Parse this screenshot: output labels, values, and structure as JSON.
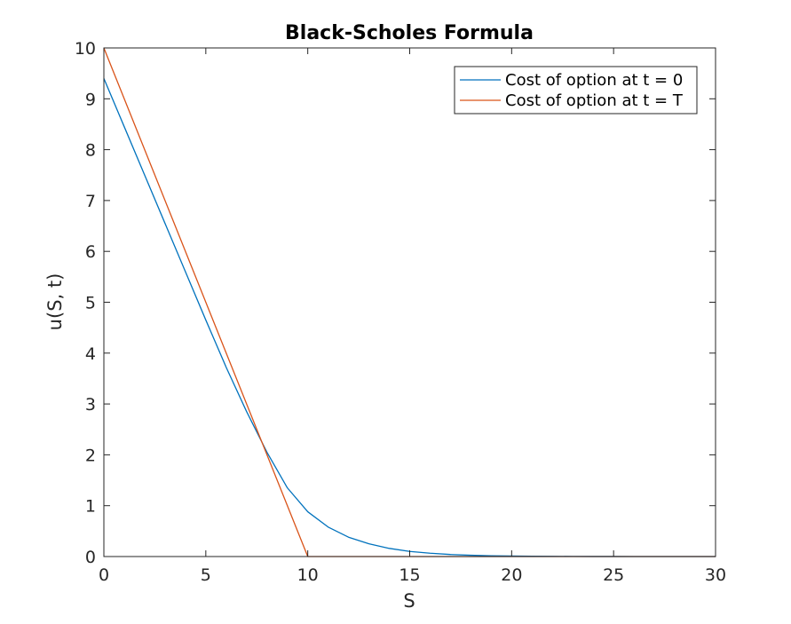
{
  "chart_data": {
    "type": "line",
    "title": "Black-Scholes Formula",
    "xlabel": "S",
    "ylabel": "u(S, t)",
    "xlim": [
      0,
      30
    ],
    "ylim": [
      0,
      10
    ],
    "xticks": [
      0,
      5,
      10,
      15,
      20,
      25,
      30
    ],
    "yticks": [
      0,
      1,
      2,
      3,
      4,
      5,
      6,
      7,
      8,
      9,
      10
    ],
    "grid": false,
    "legend_position": "top-right",
    "series": [
      {
        "name": "Cost of option at t = 0",
        "color": "#0072BD",
        "x": [
          0,
          1,
          2,
          3,
          4,
          5,
          6,
          7,
          8,
          9,
          10,
          11,
          12,
          13,
          14,
          15,
          16,
          17,
          18,
          19,
          20,
          21,
          22,
          23,
          24,
          25,
          26,
          27,
          28,
          29,
          30
        ],
        "y": [
          9.4,
          8.45,
          7.5,
          6.55,
          5.6,
          4.65,
          3.72,
          2.85,
          2.05,
          1.35,
          0.88,
          0.58,
          0.38,
          0.25,
          0.16,
          0.1,
          0.065,
          0.04,
          0.025,
          0.015,
          0.01,
          0.006,
          0.004,
          0.002,
          0.001,
          0.001,
          0,
          0,
          0,
          0,
          0
        ]
      },
      {
        "name": "Cost of option at t = T",
        "color": "#D95319",
        "x": [
          0,
          10,
          11,
          12,
          13,
          14,
          15,
          16,
          17,
          18,
          19,
          20,
          21,
          22,
          23,
          24,
          25,
          26,
          27,
          28,
          29,
          30
        ],
        "y": [
          10,
          0,
          0,
          0,
          0,
          0,
          0,
          0,
          0,
          0,
          0,
          0,
          0,
          0,
          0,
          0,
          0,
          0,
          0,
          0,
          0,
          0
        ]
      }
    ]
  }
}
